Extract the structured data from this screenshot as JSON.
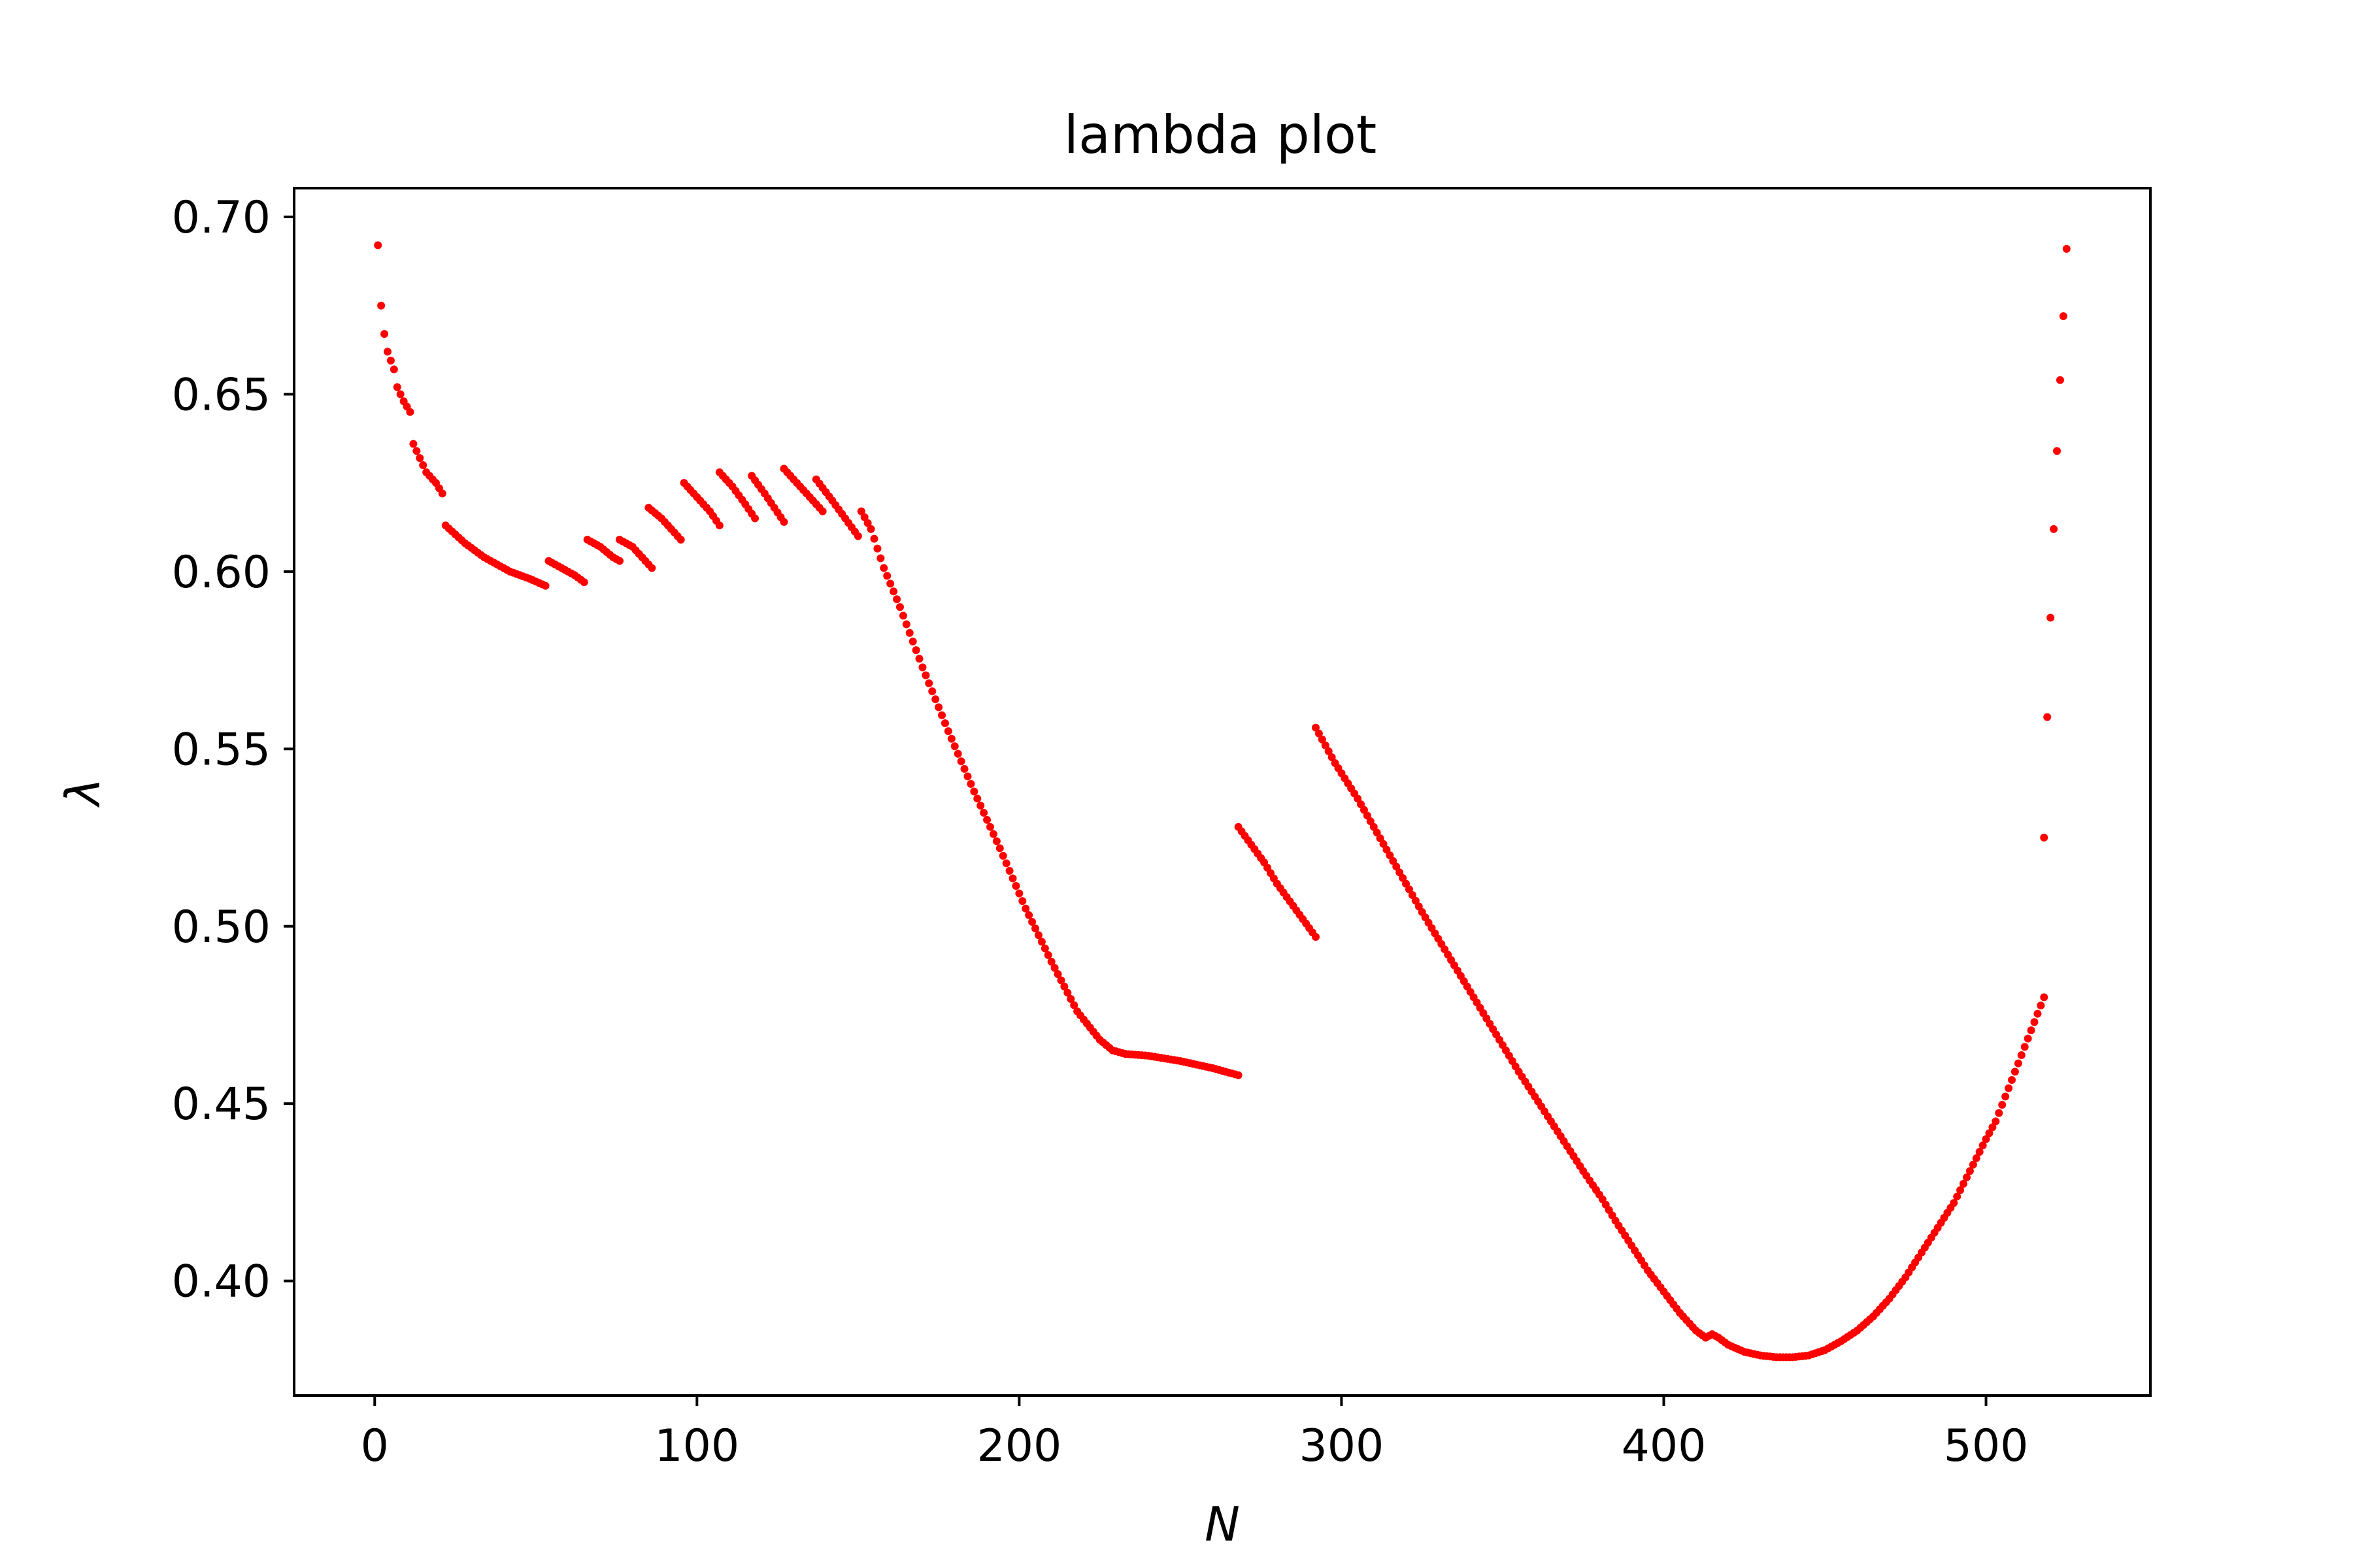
{
  "chart_data": {
    "type": "scatter",
    "title": "lambda plot",
    "xlabel": "N",
    "ylabel": "λ",
    "xlim": [
      -25,
      551
    ],
    "ylim": [
      0.3677,
      0.7081
    ],
    "xticks": [
      0,
      100,
      200,
      300,
      400,
      500
    ],
    "xtick_labels": [
      "0",
      "100",
      "200",
      "300",
      "400",
      "500"
    ],
    "yticks": [
      0.4,
      0.45,
      0.5,
      0.55,
      0.6,
      0.65,
      0.7
    ],
    "ytick_labels": [
      "0.40",
      "0.45",
      "0.50",
      "0.55",
      "0.60",
      "0.65",
      "0.70"
    ],
    "grid": false,
    "marker_color": "#ff0000",
    "series": [
      {
        "name": "lambda",
        "segments": [
          [
            [
              1,
              0.692
            ]
          ],
          [
            [
              2,
              0.675
            ],
            [
              3,
              0.667
            ],
            [
              4,
              0.662
            ],
            [
              6,
              0.657
            ],
            [
              7,
              0.652
            ],
            [
              9,
              0.648
            ],
            [
              11,
              0.645
            ]
          ],
          [
            [
              12,
              0.636
            ],
            [
              14,
              0.632
            ],
            [
              16,
              0.628
            ],
            [
              19,
              0.625
            ],
            [
              21,
              0.622
            ]
          ],
          [
            [
              22,
              0.613
            ],
            [
              28,
              0.608
            ],
            [
              34,
              0.604
            ],
            [
              42,
              0.6
            ],
            [
              48,
              0.598
            ],
            [
              53,
              0.596
            ]
          ],
          [
            [
              54,
              0.603
            ],
            [
              58,
              0.601
            ],
            [
              62,
              0.599
            ],
            [
              65,
              0.597
            ]
          ],
          [
            [
              66,
              0.609
            ],
            [
              70,
              0.607
            ],
            [
              74,
              0.604
            ],
            [
              76,
              0.603
            ]
          ],
          [
            [
              76,
              0.609
            ],
            [
              80,
              0.607
            ],
            [
              83,
              0.604
            ],
            [
              86,
              0.601
            ]
          ],
          [
            [
              85,
              0.618
            ],
            [
              89,
              0.615
            ],
            [
              92,
              0.612
            ],
            [
              95,
              0.609
            ]
          ],
          [
            [
              96,
              0.625
            ],
            [
              100,
              0.621
            ],
            [
              104,
              0.617
            ],
            [
              107,
              0.613
            ]
          ],
          [
            [
              107,
              0.628
            ],
            [
              111,
              0.624
            ],
            [
              115,
              0.619
            ],
            [
              118,
              0.615
            ]
          ],
          [
            [
              117,
              0.627
            ],
            [
              121,
              0.622
            ],
            [
              124,
              0.618
            ],
            [
              127,
              0.614
            ]
          ],
          [
            [
              127,
              0.629
            ],
            [
              131,
              0.625
            ],
            [
              135,
              0.621
            ],
            [
              139,
              0.617
            ]
          ],
          [
            [
              137,
              0.626
            ],
            [
              142,
              0.62
            ],
            [
              146,
              0.615
            ],
            [
              150,
              0.61
            ]
          ],
          [
            [
              151,
              0.617
            ],
            [
              154,
              0.612
            ],
            [
              158,
              0.601
            ],
            [
              163,
              0.59
            ],
            [
              170,
              0.573
            ],
            [
              178,
              0.555
            ],
            [
              186,
              0.538
            ],
            [
              194,
              0.522
            ],
            [
              202,
              0.505
            ],
            [
              210,
              0.49
            ],
            [
              218,
              0.476
            ],
            [
              225,
              0.468
            ],
            [
              229,
              0.465
            ],
            [
              233,
              0.464
            ]
          ],
          [
            [
              233,
              0.464
            ],
            [
              240,
              0.4635
            ],
            [
              250,
              0.462
            ],
            [
              260,
              0.46
            ],
            [
              268,
              0.458
            ]
          ],
          [
            [
              268,
              0.528
            ],
            [
              272,
              0.523
            ],
            [
              276,
              0.518
            ],
            [
              280,
              0.512
            ],
            [
              284,
              0.507
            ],
            [
              288,
              0.502
            ],
            [
              292,
              0.497
            ]
          ],
          [
            [
              292,
              0.556
            ],
            [
              298,
              0.546
            ],
            [
              305,
              0.536
            ],
            [
              315,
              0.52
            ],
            [
              325,
              0.504
            ],
            [
              335,
              0.489
            ],
            [
              345,
              0.474
            ],
            [
              355,
              0.459
            ],
            [
              365,
              0.445
            ],
            [
              375,
              0.431
            ],
            [
              381,
              0.423
            ],
            [
              385,
              0.417
            ],
            [
              390,
              0.41
            ],
            [
              395,
              0.403
            ],
            [
              400,
              0.397
            ],
            [
              405,
              0.391
            ],
            [
              410,
              0.386
            ],
            [
              413,
              0.384
            ],
            [
              415,
              0.385
            ],
            [
              417,
              0.384
            ]
          ],
          [
            [
              417,
              0.384
            ],
            [
              420,
              0.382
            ],
            [
              425,
              0.38
            ],
            [
              430,
              0.379
            ],
            [
              435,
              0.3785
            ],
            [
              440,
              0.3785
            ],
            [
              445,
              0.379
            ],
            [
              450,
              0.3805
            ],
            [
              455,
              0.383
            ],
            [
              460,
              0.386
            ],
            [
              465,
              0.39
            ],
            [
              470,
              0.395
            ],
            [
              475,
              0.401
            ],
            [
              480,
              0.408
            ],
            [
              485,
              0.415
            ],
            [
              490,
              0.422
            ],
            [
              495,
              0.431
            ],
            [
              500,
              0.44
            ],
            [
              503,
              0.445
            ],
            [
              506,
              0.452
            ],
            [
              509,
              0.459
            ],
            [
              512,
              0.466
            ],
            [
              515,
              0.473
            ],
            [
              518,
              0.48
            ]
          ],
          [
            [
              518,
              0.525
            ]
          ],
          [
            [
              519,
              0.559
            ]
          ],
          [
            [
              520,
              0.587
            ]
          ],
          [
            [
              521,
              0.612
            ]
          ],
          [
            [
              522,
              0.634
            ]
          ],
          [
            [
              523,
              0.654
            ]
          ],
          [
            [
              524,
              0.672
            ]
          ],
          [
            [
              525,
              0.691
            ]
          ]
        ]
      }
    ]
  }
}
